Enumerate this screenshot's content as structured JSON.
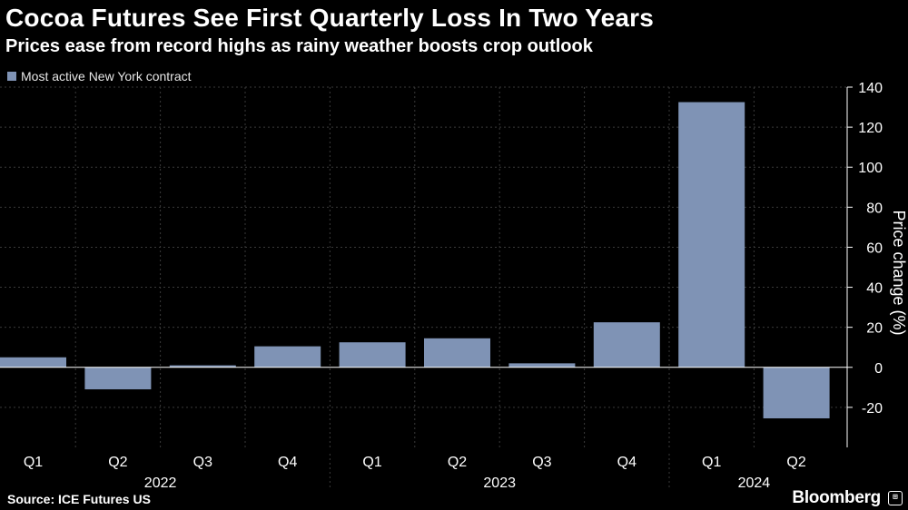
{
  "header": {
    "title": "Cocoa Futures See First Quarterly Loss In Two Years",
    "subtitle": "Prices ease from record highs as rainy weather boosts crop outlook"
  },
  "legend": {
    "label": "Most active New York contract",
    "color": "#7f93b5"
  },
  "footer": {
    "source": "Source: ICE Futures US",
    "brand": "Bloomberg",
    "badge_icon": "chart-badge-icon"
  },
  "colors": {
    "background": "#000000",
    "bar": "#7f93b5",
    "axis": "#ffffff",
    "grid": "#3a3a3a"
  },
  "chart_data": {
    "type": "bar",
    "categories": [
      "Q1",
      "Q2",
      "Q3",
      "Q4",
      "Q1",
      "Q2",
      "Q3",
      "Q4",
      "Q1",
      "Q2"
    ],
    "year_groups": [
      {
        "label": "2022",
        "quarters": 4
      },
      {
        "label": "2023",
        "quarters": 4
      },
      {
        "label": "2024",
        "quarters": 2
      }
    ],
    "series": [
      {
        "name": "Most active New York contract",
        "values": [
          5,
          -11,
          1,
          10.5,
          12.5,
          14.5,
          2,
          22.5,
          132.5,
          -25.5
        ]
      }
    ],
    "ylabel": "Price change (%)",
    "ylim": [
      -40,
      140
    ],
    "yticks": [
      140,
      120,
      100,
      80,
      60,
      40,
      20,
      0,
      -20
    ],
    "ytick_labels": [
      "140",
      "120",
      "100",
      "80",
      "60",
      "40",
      "20",
      "0",
      "-20"
    ],
    "y_axis_position": "right",
    "grid": true
  }
}
